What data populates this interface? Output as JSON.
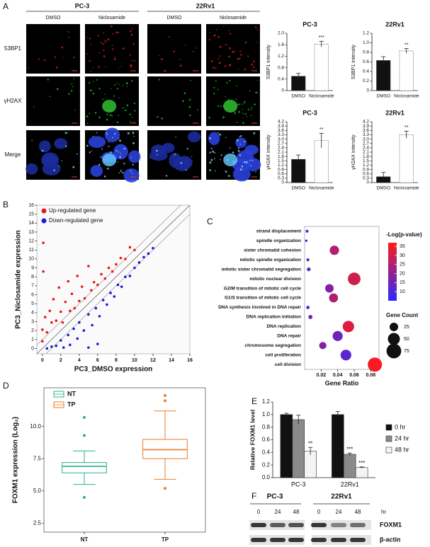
{
  "panel_labels": [
    "A",
    "B",
    "C",
    "D",
    "E",
    "F"
  ],
  "microscopy": {
    "cell_lines": [
      "PC-3",
      "22Rv1"
    ],
    "treatments": [
      "DMSO",
      "Niclosamide",
      "DMSO",
      "Niclosamide"
    ],
    "stains": [
      "53BP1",
      "γH2AX",
      "Merge"
    ]
  },
  "blot": {
    "cell_lines": [
      "PC-3",
      "22Rv1"
    ],
    "timepoints": [
      "0",
      "24",
      "48",
      "0",
      "24",
      "48"
    ],
    "unit": "hr",
    "proteins": [
      "FOXM1",
      "β-actin"
    ]
  },
  "chart_data": [
    {
      "type": "bar",
      "title": "PC-3",
      "y_label": "53BP1 intensity",
      "categories": [
        "DMSO",
        "Niclosamide"
      ],
      "values": [
        0.5,
        1.62
      ],
      "errors": [
        0.1,
        0.1
      ],
      "sig": [
        null,
        "***"
      ],
      "colors": [
        "#111111",
        "#ffffff"
      ],
      "ylim": [
        0,
        2
      ],
      "yticks": [
        0,
        0.4,
        0.8,
        1.2,
        1.6,
        {
          "value": 2,
          "label": "2.0"
        }
      ]
    },
    {
      "type": "bar",
      "title": "22Rv1",
      "y_label": "53BP1 intensity",
      "categories": [
        "DMSO",
        "Niclosamide"
      ],
      "values": [
        0.63,
        0.83
      ],
      "errors": [
        0.08,
        0.05
      ],
      "sig": [
        null,
        "**"
      ],
      "colors": [
        "#111111",
        "#ffffff"
      ],
      "ylim": [
        0,
        1.2
      ],
      "yticks": [
        0,
        0.2,
        0.4,
        0.6,
        0.8,
        {
          "value": 1,
          "label": "1.0"
        },
        1.2
      ]
    },
    {
      "type": "bar",
      "title": "PC-3",
      "y_label": "γH2AX intensity",
      "categories": [
        "DMSO",
        "Niclosamide"
      ],
      "values": [
        1.6,
        2.9
      ],
      "errors": [
        0.3,
        0.5
      ],
      "sig": [
        null,
        "**"
      ],
      "colors": [
        "#111111",
        "#ffffff"
      ],
      "ylim": [
        0,
        4.2
      ],
      "yticks": [
        0,
        0.3,
        0.6,
        0.9,
        1.2,
        1.5,
        1.8,
        2.1,
        2.4,
        2.7,
        {
          "value": 3,
          "label": "3.0"
        },
        3.3,
        3.6,
        3.9,
        4.2
      ]
    },
    {
      "type": "bar",
      "title": "22Rv1",
      "y_label": "γH2AX intensity",
      "categories": [
        "DMSO",
        "Niclosamide"
      ],
      "values": [
        0.4,
        3.3
      ],
      "errors": [
        0.3,
        0.25
      ],
      "sig": [
        null,
        "**"
      ],
      "colors": [
        "#111111",
        "#ffffff"
      ],
      "ylim": [
        0,
        4.2
      ],
      "yticks": [
        0,
        0.3,
        0.6,
        0.9,
        1.2,
        1.5,
        1.8,
        2.1,
        2.4,
        2.7,
        {
          "value": 3,
          "label": "3.0"
        },
        3.3,
        3.6,
        3.9,
        4.2
      ]
    },
    {
      "type": "scatter",
      "x_label": "PC3_DMSO expression",
      "y_label": "PC3_Niclosamide expression",
      "xlim": [
        -0.6,
        16
      ],
      "ylim": [
        -0.6,
        16
      ],
      "xticks": [
        0,
        2,
        4,
        6,
        8,
        10,
        12,
        14,
        16
      ],
      "yticks": [
        0,
        1,
        2,
        3,
        4,
        5,
        6,
        7,
        8,
        9,
        10,
        11,
        12,
        13,
        14,
        15,
        16
      ],
      "series": [
        {
          "name": "Up-regulated gene",
          "color": "#e8191a",
          "x": [
            0,
            0,
            0.3,
            0.5,
            0.8,
            1,
            1.2,
            1.5,
            1.8,
            2,
            2.2,
            2.5,
            2.8,
            3,
            3.2,
            3.5,
            3.8,
            4,
            4.3,
            4.6,
            5,
            5.3,
            5.6,
            6,
            6.4,
            6.8,
            7.2,
            7.6,
            8,
            8.5,
            9,
            9.5,
            10,
            0.1,
            0.1
          ],
          "y": [
            0.8,
            2.1,
            3.5,
            1.8,
            4.2,
            2.9,
            5.5,
            3.1,
            6.8,
            4.1,
            2.9,
            5.2,
            7.5,
            4.2,
            6.1,
            4.5,
            8.1,
            5.3,
            6.9,
            5.6,
            9.2,
            6.5,
            7.4,
            7.1,
            8.3,
            7.8,
            9,
            8.6,
            9.4,
            10.1,
            10,
            11.3,
            11,
            8.6,
            11.8
          ]
        },
        {
          "name": "Down-regulated gene",
          "color": "#1a1adb",
          "x": [
            0.5,
            1,
            1.5,
            2,
            2.3,
            2.8,
            3,
            3.4,
            3.8,
            4,
            4.5,
            5,
            5.4,
            5.8,
            6.2,
            6.6,
            7,
            7.4,
            7.8,
            8.2,
            8.6,
            9,
            9.5,
            10,
            10.5,
            11,
            11.5,
            12,
            6,
            5
          ],
          "y": [
            0,
            0.2,
            0.3,
            0.9,
            0.1,
            1.5,
            0.4,
            2.2,
            1.1,
            2.9,
            2,
            3.8,
            2.6,
            4.5,
            3.6,
            5.4,
            4.9,
            6.2,
            5.8,
            7.1,
            6.9,
            8,
            8.1,
            9,
            9.6,
            10.2,
            10.6,
            11.2,
            0.5,
            0.1
          ]
        }
      ]
    },
    {
      "type": "dot",
      "x_label": "Gene Ratio",
      "color_title": "-Log(p-value)",
      "size_title": "Gene Count",
      "categories": [
        "strand displacement",
        "spindle organization",
        "sister chromatid cohesion",
        "mitotic spindle organization",
        "mitotic sister chromatid segregation",
        "mitotic nuclear division",
        "G2/M transition of mitotic cell cycle",
        "G1/S transition of mitotic cell cycle",
        "DNA synthesis involved in DNA repair",
        "DNA replication initiation",
        "DNA replication",
        "DNA repair",
        "chromosome segregation",
        "cell proliferation",
        "cell division"
      ],
      "gene_ratio": [
        0.003,
        0.002,
        0.036,
        0.004,
        0.005,
        0.06,
        0.03,
        0.035,
        0.004,
        0.007,
        0.053,
        0.04,
        0.022,
        0.05,
        0.085
      ],
      "neg_log_p": [
        8,
        7,
        25,
        10,
        12,
        30,
        18,
        25,
        10,
        15,
        32,
        15,
        18,
        12,
        36
      ],
      "gene_count": [
        3,
        2,
        30,
        3,
        5,
        55,
        25,
        28,
        4,
        6,
        45,
        35,
        18,
        40,
        70
      ],
      "xlim": [
        0,
        0.09
      ],
      "xticks": [
        0.02,
        0.04,
        0.06,
        0.08
      ],
      "clim": [
        5,
        37
      ],
      "cticks": [
        10,
        15,
        20,
        25,
        30,
        35
      ],
      "cmap": [
        "#2a2aff",
        "#ff1a1a"
      ],
      "size_ticks": [
        25,
        50,
        75
      ]
    },
    {
      "type": "box",
      "y_label": "FOXM1 expression (Log₂)",
      "ylim": [
        1.8,
        13
      ],
      "yticks": [
        2.5,
        {
          "value": 5,
          "label": "5.0"
        },
        7.5,
        {
          "value": 10,
          "label": "10.0"
        }
      ],
      "groups": [
        {
          "name": "NT",
          "color": "#2ab08f",
          "whislo": 5.5,
          "q1": 6.4,
          "median": 6.9,
          "q3": 7.2,
          "whishi": 8.1,
          "fliers": [
            10.7,
            9.3,
            4.5
          ]
        },
        {
          "name": "TP",
          "color": "#f07b2a",
          "whislo": 5.9,
          "q1": 7.5,
          "median": 8.2,
          "q3": 9,
          "whishi": 11.2,
          "fliers": [
            12.4,
            12,
            5.2
          ]
        }
      ]
    },
    {
      "type": "grouped_bar",
      "y_label": "Relative FOXM1 level",
      "categories": [
        "PC-3",
        "22Rv1"
      ],
      "ylim": [
        0,
        1.2
      ],
      "yticks": [
        {
          "value": 0,
          "label": "0.0"
        },
        0.2,
        0.4,
        0.6,
        0.8,
        {
          "value": 1,
          "label": "1.0"
        },
        1.2
      ],
      "series": [
        {
          "name": "0 hr",
          "color": "#111111",
          "values": [
            1,
            1
          ],
          "errors": [
            0.02,
            0.05
          ],
          "sig": [
            null,
            null
          ]
        },
        {
          "name": "24 hr",
          "color": "#8a8a8a",
          "values": [
            0.92,
            0.37
          ],
          "errors": [
            0.07,
            0.02
          ],
          "sig": [
            null,
            "***"
          ]
        },
        {
          "name": "48 hr",
          "color": "#f4f4f4",
          "values": [
            0.42,
            0.16
          ],
          "errors": [
            0.06,
            0.01
          ],
          "sig": [
            "**",
            "***"
          ]
        }
      ]
    }
  ]
}
